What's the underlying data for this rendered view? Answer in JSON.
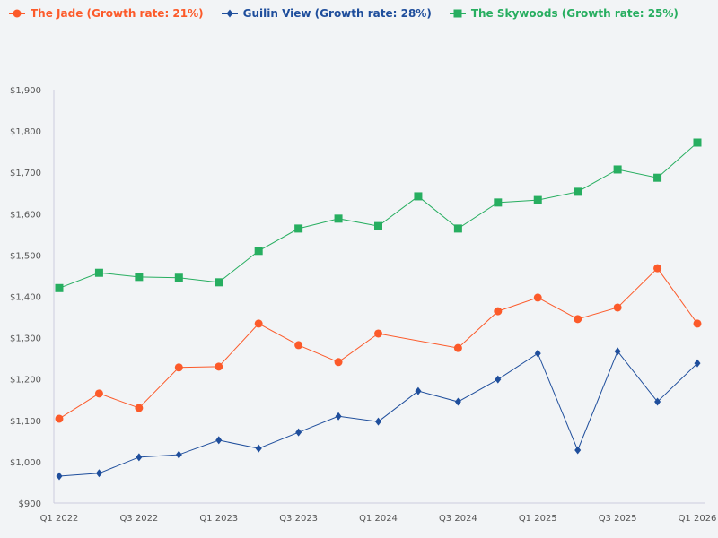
{
  "chart_data": {
    "type": "line",
    "title": "",
    "xlabel": "",
    "ylabel": "",
    "ylim": [
      900,
      1900
    ],
    "yticks": [
      "$900",
      "$1,000",
      "$1,100",
      "$1,200",
      "$1,300",
      "$1,400",
      "$1,500",
      "$1,600",
      "$1,700",
      "$1,800",
      "$1,900"
    ],
    "ytick_values": [
      900,
      1000,
      1100,
      1200,
      1300,
      1400,
      1500,
      1600,
      1700,
      1800,
      1900
    ],
    "categories": [
      "Q1 2022",
      "Q2 2022",
      "Q3 2022",
      "Q4 2022",
      "Q1 2023",
      "Q2 2023",
      "Q3 2023",
      "Q4 2023",
      "Q1 2024",
      "Q2 2024",
      "Q3 2024",
      "Q4 2024",
      "Q1 2025",
      "Q2 2025",
      "Q3 2025",
      "Q4 2025",
      "Q1 2026"
    ],
    "xtick_labels": [
      "Q1 2022",
      "Q3 2022",
      "Q1 2023",
      "Q3 2023",
      "Q1 2024",
      "Q3 2024",
      "Q1 2025",
      "Q3 2025",
      "Q1 2026"
    ],
    "grid": false,
    "legend_position": "top-left",
    "series": [
      {
        "name": "The Jade (Growth rate: 21%)",
        "color": "#fc5a2a",
        "marker": "circle",
        "values": [
          1104,
          1165,
          1130,
          1228,
          1230,
          1334,
          1282,
          1241,
          1310,
          null,
          1275,
          1364,
          1397,
          1345,
          1373,
          1468,
          1334
        ]
      },
      {
        "name": "Guilin View (Growth rate: 28%)",
        "color": "#1f4e9c",
        "marker": "diamond",
        "values": [
          965,
          972,
          1011,
          1017,
          1052,
          1032,
          1071,
          1110,
          1097,
          1171,
          1145,
          1199,
          1262,
          1028,
          1267,
          1145,
          1238
        ]
      },
      {
        "name": "The Skywoods (Growth rate: 25%)",
        "color": "#27ae60",
        "marker": "square",
        "values": [
          1420,
          1457,
          1447,
          1445,
          1434,
          1510,
          1564,
          1588,
          1570,
          1642,
          1564,
          1627,
          1633,
          1653,
          1707,
          1687,
          1772
        ]
      }
    ]
  }
}
